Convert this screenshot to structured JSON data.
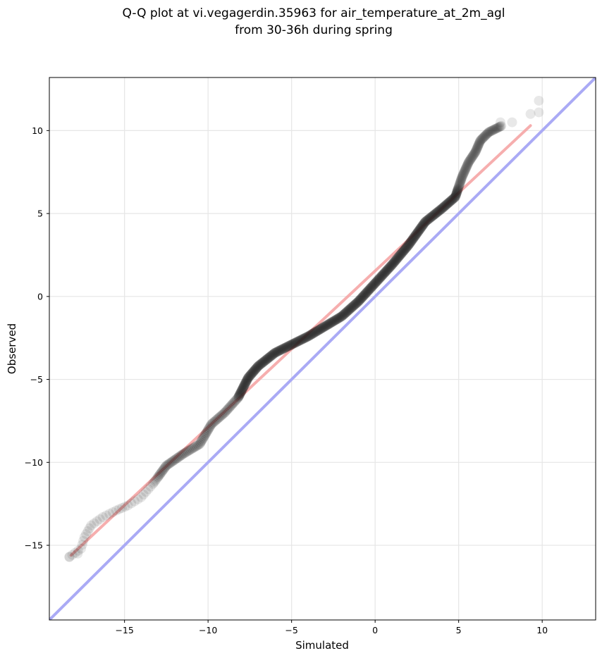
{
  "chart_data": {
    "type": "scatter",
    "title_line1": "Q-Q plot at vi.vegagerdin.35963 for air_temperature_at_2m_agl",
    "title_line2": "from 30-36h during spring",
    "xlabel": "Simulated",
    "ylabel": "Observed",
    "xlim": [
      -19.5,
      13.2
    ],
    "ylim": [
      -19.5,
      13.2
    ],
    "xticks": [
      -15,
      -10,
      -5,
      0,
      5,
      10
    ],
    "yticks": [
      -15,
      -10,
      -5,
      0,
      5,
      10
    ],
    "xtick_labels": [
      "−15",
      "−10",
      "−5",
      "0",
      "5",
      "10"
    ],
    "ytick_labels": [
      "−15",
      "−10",
      "−5",
      "0",
      "5",
      "10"
    ],
    "grid": true,
    "identity_line_color": "#aaaaf5",
    "fit_line_color": "#f5a0a0",
    "point_color": "#1a1a1a",
    "fit_line": {
      "x": [
        -18.2,
        9.3
      ],
      "y": [
        -15.6,
        10.3
      ]
    },
    "quantile_curve": [
      [
        -18.3,
        -15.7
      ],
      [
        -17.6,
        -15.2
      ],
      [
        -17.4,
        -14.5
      ],
      [
        -17.0,
        -13.8
      ],
      [
        -16.3,
        -13.3
      ],
      [
        -15.5,
        -12.9
      ],
      [
        -14.8,
        -12.6
      ],
      [
        -14.0,
        -12.1
      ],
      [
        -13.3,
        -11.3
      ],
      [
        -12.5,
        -10.2
      ],
      [
        -11.5,
        -9.5
      ],
      [
        -10.5,
        -8.9
      ],
      [
        -9.8,
        -7.7
      ],
      [
        -9.0,
        -7.0
      ],
      [
        -8.2,
        -6.1
      ],
      [
        -7.6,
        -4.9
      ],
      [
        -7.0,
        -4.2
      ],
      [
        -6.0,
        -3.4
      ],
      [
        -5.0,
        -2.9
      ],
      [
        -4.0,
        -2.4
      ],
      [
        -3.0,
        -1.8
      ],
      [
        -2.0,
        -1.2
      ],
      [
        -1.0,
        -0.3
      ],
      [
        0.0,
        0.8
      ],
      [
        1.0,
        1.9
      ],
      [
        2.0,
        3.1
      ],
      [
        3.0,
        4.5
      ],
      [
        4.0,
        5.3
      ],
      [
        4.8,
        6.0
      ],
      [
        5.2,
        7.2
      ],
      [
        5.6,
        8.1
      ],
      [
        6.0,
        8.7
      ],
      [
        6.3,
        9.4
      ],
      [
        6.8,
        9.9
      ],
      [
        7.6,
        10.3
      ]
    ],
    "outlier_points": [
      {
        "x": -18.3,
        "y": -15.7
      },
      {
        "x": -17.8,
        "y": -15.5
      },
      {
        "x": 7.5,
        "y": 10.5
      },
      {
        "x": 8.2,
        "y": 10.5
      },
      {
        "x": 9.3,
        "y": 11.0
      },
      {
        "x": 9.8,
        "y": 11.1
      },
      {
        "x": 9.8,
        "y": 11.8
      }
    ]
  }
}
